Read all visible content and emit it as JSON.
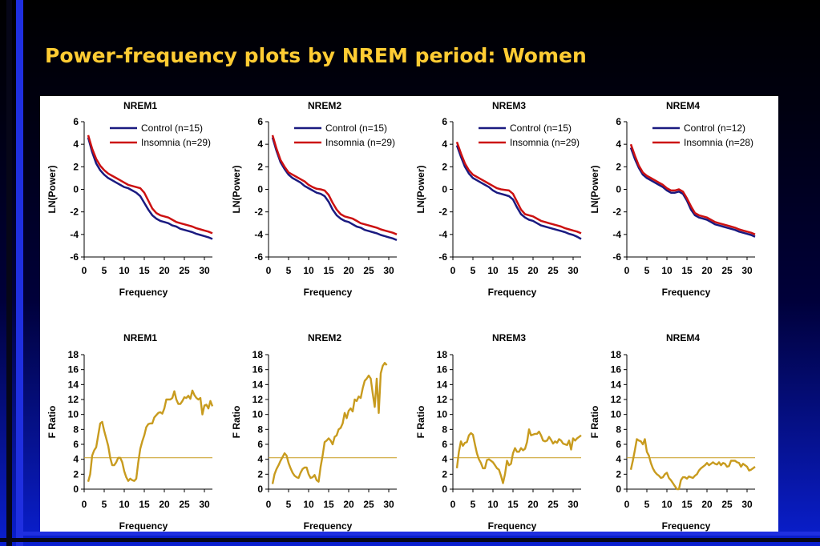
{
  "slide": {
    "title": "Power-frequency plots by NREM period: Women"
  },
  "colors": {
    "control": "#1a1a80",
    "insomnia": "#cc1111",
    "fratio": "#c89b1e",
    "refline": "#c89b1e"
  },
  "chart_data": [
    {
      "type": "line",
      "title": "NREM1",
      "xlabel": "Frequency",
      "ylabel": "LN(Power)",
      "xlim": [
        0,
        32
      ],
      "ylim": [
        -6,
        6
      ],
      "xticks": [
        0,
        5,
        10,
        15,
        20,
        25,
        30
      ],
      "yticks": [
        -6,
        -4,
        -2,
        0,
        2,
        4,
        6
      ],
      "legend_position": "top-right",
      "x": [
        1,
        2,
        3,
        4,
        5,
        6,
        7,
        8,
        9,
        10,
        11,
        12,
        13,
        14,
        15,
        16,
        17,
        18,
        19,
        20,
        21,
        22,
        23,
        24,
        25,
        26,
        27,
        28,
        29,
        30,
        31,
        32
      ],
      "series": [
        {
          "name": "Control (n=15)",
          "values": [
            4.6,
            3.3,
            2.3,
            1.7,
            1.3,
            1.0,
            0.8,
            0.6,
            0.4,
            0.2,
            0.1,
            -0.1,
            -0.3,
            -0.6,
            -1.2,
            -1.8,
            -2.3,
            -2.6,
            -2.8,
            -2.9,
            -3.0,
            -3.2,
            -3.3,
            -3.5,
            -3.6,
            -3.7,
            -3.8,
            -3.95,
            -4.05,
            -4.15,
            -4.25,
            -4.4
          ]
        },
        {
          "name": "Insomnia (n=29)",
          "values": [
            4.8,
            3.6,
            2.7,
            2.1,
            1.7,
            1.4,
            1.2,
            1.0,
            0.8,
            0.6,
            0.4,
            0.3,
            0.2,
            0.1,
            -0.3,
            -1.0,
            -1.7,
            -2.1,
            -2.3,
            -2.4,
            -2.5,
            -2.7,
            -2.9,
            -3.0,
            -3.1,
            -3.2,
            -3.3,
            -3.45,
            -3.55,
            -3.65,
            -3.75,
            -3.9
          ]
        }
      ]
    },
    {
      "type": "line",
      "title": "NREM2",
      "xlabel": "Frequency",
      "ylabel": "LN(Power)",
      "xlim": [
        0,
        32
      ],
      "ylim": [
        -6,
        6
      ],
      "xticks": [
        0,
        5,
        10,
        15,
        20,
        25,
        30
      ],
      "yticks": [
        -6,
        -4,
        -2,
        0,
        2,
        4,
        6
      ],
      "legend_position": "top-right",
      "x": [
        1,
        2,
        3,
        4,
        5,
        6,
        7,
        8,
        9,
        10,
        11,
        12,
        13,
        14,
        15,
        16,
        17,
        18,
        19,
        20,
        21,
        22,
        23,
        24,
        25,
        26,
        27,
        28,
        29,
        30,
        31,
        32
      ],
      "series": [
        {
          "name": "Control (n=15)",
          "values": [
            4.6,
            3.4,
            2.4,
            1.8,
            1.3,
            1.0,
            0.8,
            0.6,
            0.3,
            0.1,
            -0.1,
            -0.3,
            -0.4,
            -0.6,
            -1.1,
            -1.8,
            -2.3,
            -2.6,
            -2.8,
            -2.9,
            -3.1,
            -3.3,
            -3.4,
            -3.6,
            -3.7,
            -3.8,
            -3.9,
            -4.05,
            -4.15,
            -4.25,
            -4.35,
            -4.5
          ]
        },
        {
          "name": "Insomnia (n=29)",
          "values": [
            4.8,
            3.6,
            2.6,
            2.0,
            1.5,
            1.3,
            1.1,
            0.9,
            0.7,
            0.4,
            0.2,
            0.05,
            0.0,
            -0.1,
            -0.5,
            -1.2,
            -1.8,
            -2.2,
            -2.4,
            -2.5,
            -2.6,
            -2.8,
            -3.0,
            -3.1,
            -3.2,
            -3.3,
            -3.4,
            -3.55,
            -3.65,
            -3.75,
            -3.85,
            -4.0
          ]
        }
      ]
    },
    {
      "type": "line",
      "title": "NREM3",
      "xlabel": "Frequency",
      "ylabel": "LN(Power)",
      "xlim": [
        0,
        32
      ],
      "ylim": [
        -6,
        6
      ],
      "xticks": [
        0,
        5,
        10,
        15,
        20,
        25,
        30
      ],
      "yticks": [
        -6,
        -4,
        -2,
        0,
        2,
        4,
        6
      ],
      "legend_position": "top-right",
      "x": [
        1,
        2,
        3,
        4,
        5,
        6,
        7,
        8,
        9,
        10,
        11,
        12,
        13,
        14,
        15,
        16,
        17,
        18,
        19,
        20,
        21,
        22,
        23,
        24,
        25,
        26,
        27,
        28,
        29,
        30,
        31,
        32
      ],
      "series": [
        {
          "name": "Control (n=15)",
          "values": [
            3.9,
            2.9,
            2.0,
            1.4,
            1.0,
            0.8,
            0.6,
            0.4,
            0.2,
            -0.1,
            -0.3,
            -0.4,
            -0.5,
            -0.6,
            -0.9,
            -1.6,
            -2.2,
            -2.5,
            -2.7,
            -2.8,
            -3.0,
            -3.2,
            -3.3,
            -3.4,
            -3.5,
            -3.6,
            -3.7,
            -3.8,
            -3.95,
            -4.05,
            -4.2,
            -4.4
          ]
        },
        {
          "name": "Insomnia (n=29)",
          "values": [
            4.2,
            3.2,
            2.3,
            1.7,
            1.3,
            1.1,
            0.9,
            0.7,
            0.5,
            0.3,
            0.1,
            0.0,
            -0.05,
            -0.1,
            -0.4,
            -1.1,
            -1.8,
            -2.2,
            -2.3,
            -2.4,
            -2.6,
            -2.8,
            -2.9,
            -3.0,
            -3.1,
            -3.2,
            -3.3,
            -3.45,
            -3.55,
            -3.65,
            -3.75,
            -3.9
          ]
        }
      ]
    },
    {
      "type": "line",
      "title": "NREM4",
      "xlabel": "Frequency",
      "ylabel": "LN(Power)",
      "xlim": [
        0,
        32
      ],
      "ylim": [
        -6,
        6
      ],
      "xticks": [
        0,
        5,
        10,
        15,
        20,
        25,
        30
      ],
      "yticks": [
        -6,
        -4,
        -2,
        0,
        2,
        4,
        6
      ],
      "legend_position": "top-right",
      "x": [
        1,
        2,
        3,
        4,
        5,
        6,
        7,
        8,
        9,
        10,
        11,
        12,
        13,
        14,
        15,
        16,
        17,
        18,
        19,
        20,
        21,
        22,
        23,
        24,
        25,
        26,
        27,
        28,
        29,
        30,
        31,
        32
      ],
      "series": [
        {
          "name": "Control (n=12)",
          "values": [
            3.7,
            2.7,
            1.9,
            1.3,
            1.0,
            0.8,
            0.6,
            0.4,
            0.2,
            -0.1,
            -0.3,
            -0.3,
            -0.2,
            -0.4,
            -1.0,
            -1.8,
            -2.3,
            -2.5,
            -2.6,
            -2.7,
            -2.9,
            -3.1,
            -3.2,
            -3.3,
            -3.4,
            -3.5,
            -3.6,
            -3.75,
            -3.85,
            -3.95,
            -4.05,
            -4.2
          ]
        },
        {
          "name": "Insomnia (n=28)",
          "values": [
            4.0,
            3.0,
            2.1,
            1.5,
            1.2,
            1.0,
            0.8,
            0.6,
            0.4,
            0.1,
            -0.1,
            -0.1,
            0.0,
            -0.2,
            -0.8,
            -1.5,
            -2.1,
            -2.3,
            -2.4,
            -2.5,
            -2.7,
            -2.9,
            -3.0,
            -3.1,
            -3.2,
            -3.3,
            -3.4,
            -3.55,
            -3.65,
            -3.75,
            -3.85,
            -4.0
          ]
        }
      ]
    },
    {
      "type": "line",
      "title": "NREM1",
      "xlabel": "Frequency",
      "ylabel": "F Ratio",
      "xlim": [
        0,
        32
      ],
      "ylim": [
        0,
        18
      ],
      "xticks": [
        0,
        5,
        10,
        15,
        20,
        25,
        30
      ],
      "yticks": [
        0,
        2,
        4,
        6,
        8,
        10,
        12,
        14,
        16,
        18
      ],
      "reference_line": 4.2,
      "x": [
        1,
        1.5,
        2,
        2.5,
        3,
        3.5,
        4,
        4.5,
        5,
        5.5,
        6,
        6.5,
        7,
        7.5,
        8,
        8.5,
        9,
        9.5,
        10,
        10.5,
        11,
        11.5,
        12,
        12.5,
        13,
        13.5,
        14,
        14.5,
        15,
        15.5,
        16,
        16.5,
        17,
        17.5,
        18,
        18.5,
        19,
        19.5,
        20,
        20.5,
        21,
        21.5,
        22,
        22.5,
        23,
        23.5,
        24,
        24.5,
        25,
        25.5,
        26,
        26.5,
        27,
        27.5,
        28,
        28.5,
        29,
        29.5,
        30,
        30.5,
        31,
        31.5,
        32
      ],
      "series": [
        {
          "values": [
            1.0,
            2.0,
            4.5,
            5.2,
            5.6,
            7.2,
            8.8,
            9.0,
            7.8,
            6.8,
            5.8,
            4.2,
            3.2,
            3.2,
            3.6,
            4.2,
            4.2,
            3.6,
            2.4,
            1.6,
            1.1,
            1.4,
            1.2,
            1.1,
            1.4,
            3.6,
            5.4,
            6.4,
            7.2,
            8.3,
            8.7,
            8.8,
            8.8,
            9.6,
            9.9,
            10.2,
            10.3,
            10.1,
            10.8,
            12.0,
            12.0,
            12.0,
            12.2,
            13.1,
            12.0,
            11.4,
            11.4,
            11.8,
            12.3,
            12.2,
            12.5,
            12.1,
            13.2,
            12.6,
            12.2,
            12.0,
            12.2,
            10.0,
            11.2,
            11.3,
            10.8,
            11.8,
            11.1
          ]
        }
      ]
    },
    {
      "type": "line",
      "title": "NREM2",
      "xlabel": "Frequency",
      "ylabel": "F Ratio",
      "xlim": [
        0,
        32
      ],
      "ylim": [
        0,
        18
      ],
      "xticks": [
        0,
        5,
        10,
        15,
        20,
        25,
        30
      ],
      "yticks": [
        0,
        2,
        4,
        6,
        8,
        10,
        12,
        14,
        16,
        18
      ],
      "reference_line": 4.2,
      "x": [
        1,
        1.5,
        2,
        2.5,
        3,
        3.5,
        4,
        4.5,
        5,
        5.5,
        6,
        6.5,
        7,
        7.5,
        8,
        8.5,
        9,
        9.5,
        10,
        10.5,
        11,
        11.5,
        12,
        12.5,
        13,
        13.5,
        14,
        14.5,
        15,
        15.5,
        16,
        16.5,
        17,
        17.5,
        18,
        18.5,
        19,
        19.5,
        20,
        20.5,
        21,
        21.5,
        22,
        22.5,
        23,
        23.5,
        24,
        24.5,
        25,
        25.5,
        26,
        26.5,
        27,
        27.5,
        28,
        28.5,
        29,
        29.5,
        30,
        30.5,
        31,
        31.5,
        32
      ],
      "series": [
        {
          "values": [
            0.7,
            2.0,
            2.7,
            3.2,
            3.8,
            4.3,
            4.8,
            4.5,
            3.5,
            2.8,
            2.2,
            1.8,
            1.6,
            1.5,
            2.2,
            2.7,
            2.9,
            2.9,
            2.0,
            1.5,
            1.6,
            1.9,
            1.2,
            1.0,
            3.0,
            4.5,
            6.3,
            6.5,
            6.8,
            6.5,
            6.0,
            7.0,
            7.2,
            8.0,
            8.2,
            8.8,
            10.2,
            9.5,
            10.5,
            10.8,
            10.4,
            12.0,
            11.8,
            12.4,
            12.2,
            13.5,
            14.5,
            14.8,
            15.2,
            14.8,
            12.8,
            11.0,
            14.8,
            10.2,
            15.5,
            16.5,
            16.9,
            16.6,
            null,
            null,
            null,
            null,
            null
          ]
        }
      ]
    },
    {
      "type": "line",
      "title": "NREM3",
      "xlabel": "Frequency",
      "ylabel": "F Ratio",
      "xlim": [
        0,
        32
      ],
      "ylim": [
        0,
        18
      ],
      "xticks": [
        0,
        5,
        10,
        15,
        20,
        25,
        30
      ],
      "yticks": [
        0,
        2,
        4,
        6,
        8,
        10,
        12,
        14,
        16,
        18
      ],
      "reference_line": 4.2,
      "x": [
        1,
        1.5,
        2,
        2.5,
        3,
        3.5,
        4,
        4.5,
        5,
        5.5,
        6,
        6.5,
        7,
        7.5,
        8,
        8.5,
        9,
        9.5,
        10,
        10.5,
        11,
        11.5,
        12,
        12.5,
        13,
        13.5,
        14,
        14.5,
        15,
        15.5,
        16,
        16.5,
        17,
        17.5,
        18,
        18.5,
        19,
        19.5,
        20,
        20.5,
        21,
        21.5,
        22,
        22.5,
        23,
        23.5,
        24,
        24.5,
        25,
        25.5,
        26,
        26.5,
        27,
        27.5,
        28,
        28.5,
        29,
        29.5,
        30,
        30.5,
        31,
        31.5,
        32
      ],
      "series": [
        {
          "values": [
            2.8,
            5.0,
            6.4,
            5.8,
            6.2,
            6.3,
            7.2,
            7.5,
            7.3,
            6.0,
            4.8,
            4.0,
            3.5,
            2.8,
            2.8,
            3.9,
            4.0,
            3.8,
            3.6,
            3.2,
            2.8,
            2.6,
            1.8,
            0.8,
            2.0,
            3.8,
            3.2,
            3.4,
            4.8,
            5.5,
            5.0,
            5.0,
            5.5,
            5.2,
            5.4,
            6.3,
            8.0,
            7.2,
            7.3,
            7.4,
            7.4,
            7.7,
            7.2,
            6.5,
            6.4,
            6.5,
            7.0,
            6.6,
            6.1,
            6.4,
            6.2,
            6.7,
            6.5,
            6.1,
            6.0,
            5.9,
            6.5,
            5.3,
            6.8,
            6.5,
            6.8,
            7.0,
            7.2
          ]
        }
      ]
    },
    {
      "type": "line",
      "title": "NREM4",
      "xlabel": "Frequency",
      "ylabel": "F Ratio",
      "xlim": [
        0,
        32
      ],
      "ylim": [
        0,
        18
      ],
      "xticks": [
        0,
        5,
        10,
        15,
        20,
        25,
        30
      ],
      "yticks": [
        0,
        2,
        4,
        6,
        8,
        10,
        12,
        14,
        16,
        18
      ],
      "reference_line": 4.2,
      "x": [
        1,
        1.5,
        2,
        2.5,
        3,
        3.5,
        4,
        4.5,
        5,
        5.5,
        6,
        6.5,
        7,
        7.5,
        8,
        8.5,
        9,
        9.5,
        10,
        10.5,
        11,
        11.5,
        12,
        12.5,
        13,
        13.5,
        14,
        14.5,
        15,
        15.5,
        16,
        16.5,
        17,
        17.5,
        18,
        18.5,
        19,
        19.5,
        20,
        20.5,
        21,
        21.5,
        22,
        22.5,
        23,
        23.5,
        24,
        24.5,
        25,
        25.5,
        26,
        26.5,
        27,
        27.5,
        28,
        28.5,
        29,
        29.5,
        30,
        30.5,
        31,
        31.5,
        32
      ],
      "series": [
        {
          "values": [
            2.6,
            3.8,
            5.2,
            6.7,
            6.5,
            6.4,
            6.0,
            6.7,
            5.0,
            4.5,
            3.5,
            2.8,
            2.3,
            2.0,
            1.8,
            1.5,
            1.6,
            2.0,
            2.2,
            1.5,
            1.2,
            0.8,
            0.4,
            0.0,
            0.0,
            1.2,
            1.6,
            1.6,
            1.4,
            1.7,
            1.6,
            1.5,
            1.8,
            2.0,
            2.5,
            2.8,
            3.0,
            3.2,
            3.5,
            3.2,
            3.4,
            3.6,
            3.4,
            3.3,
            3.6,
            3.2,
            3.5,
            3.4,
            3.0,
            3.1,
            3.8,
            3.8,
            3.8,
            3.6,
            3.5,
            3.0,
            3.4,
            3.2,
            3.0,
            2.5,
            2.6,
            2.8,
            3.0
          ]
        }
      ]
    }
  ]
}
